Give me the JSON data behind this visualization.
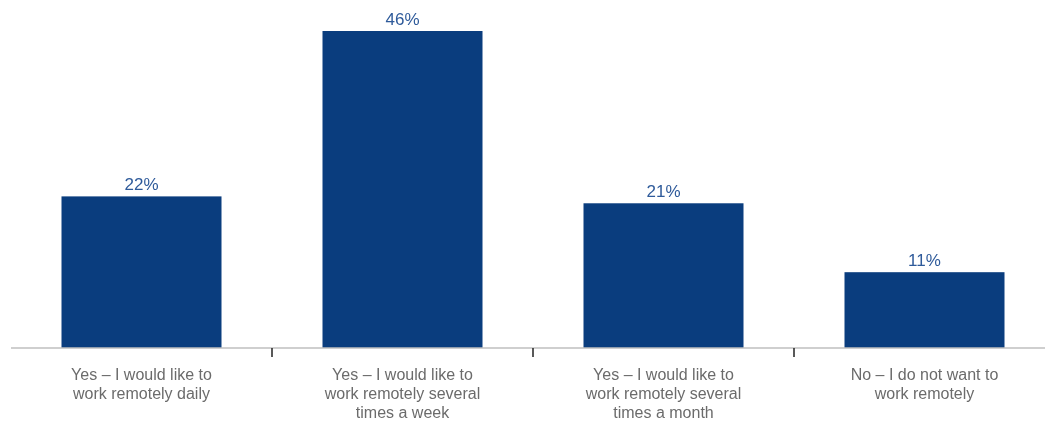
{
  "chart_data": {
    "type": "bar",
    "categories": [
      "Yes – I would like to work remotely daily",
      "Yes – I would like to work remotely several times a week",
      "Yes – I would like to work remotely several times a month",
      "No – I do not want to work remotely"
    ],
    "values": [
      22,
      46,
      21,
      11
    ],
    "value_labels": [
      "22%",
      "46%",
      "21%",
      "11%"
    ],
    "color": "#0a3d7e"
  }
}
